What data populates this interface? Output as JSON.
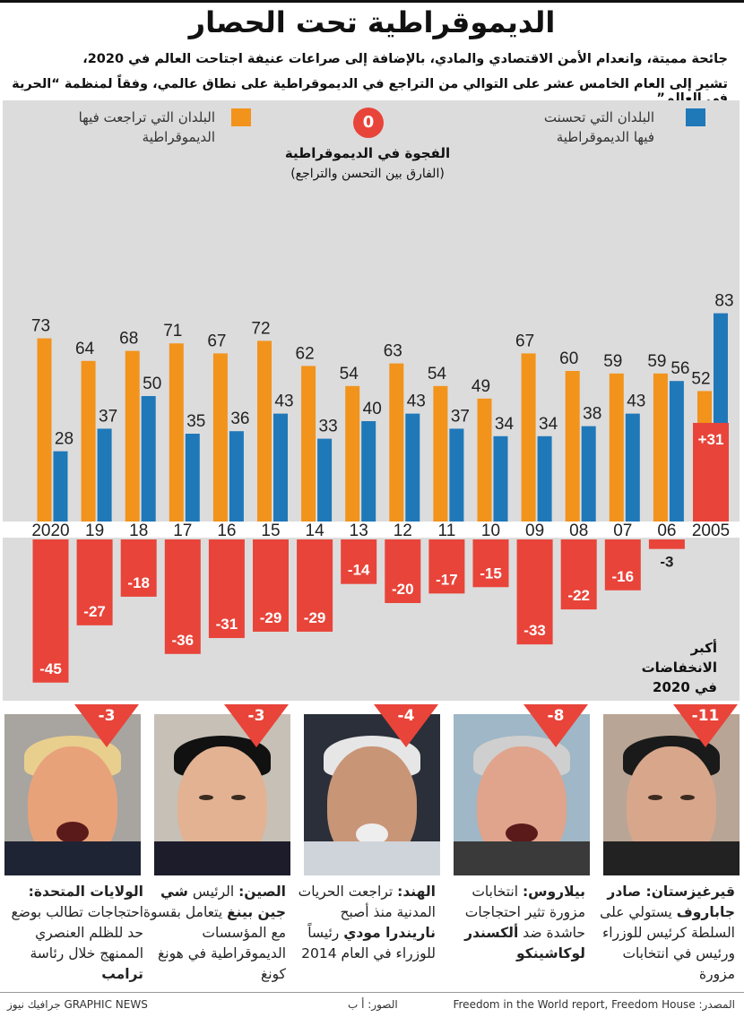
{
  "title": "الديموقراطية تحت الحصار",
  "subtitle_line1": "جائحة مميتة، وانعدام الأمن الاقتصادي والمادي، بالإضافة إلى صراعات عنيفة اجتاحت العالم في 2020،",
  "subtitle_line2": "تشير إلى العام الخامس عشر على التوالي من التراجع في الديموقراطية على نطاق عالمي، وفقاً لمنظمة “الحرية في العالم”",
  "legend": {
    "improved": "البلدان التي تحسنت فيها الديموقراطية",
    "declined": "البلدان التي تراجعت فيها الديموقراطية"
  },
  "gap": {
    "badge": "0",
    "title": "الفجوة في الديموقراطية",
    "subtitle": "(الفارق بين التحسن والتراجع)"
  },
  "colors": {
    "improved": "#1f78b8",
    "declined": "#f2931c",
    "gap": "#e8443a",
    "panel": "#dcdcdc"
  },
  "chart_data": {
    "type": "bar",
    "categories": [
      "2005",
      "06",
      "07",
      "08",
      "09",
      "10",
      "11",
      "12",
      "13",
      "14",
      "15",
      "16",
      "17",
      "18",
      "19",
      "2020"
    ],
    "series": [
      {
        "name": "البلدان التي تحسنت فيها الديموقراطية",
        "values": [
          83,
          56,
          43,
          38,
          34,
          34,
          37,
          43,
          40,
          33,
          43,
          36,
          35,
          50,
          37,
          28
        ]
      },
      {
        "name": "البلدان التي تراجعت فيها الديموقراطية",
        "values": [
          52,
          59,
          59,
          60,
          67,
          49,
          54,
          63,
          54,
          62,
          72,
          67,
          71,
          68,
          64,
          73
        ]
      },
      {
        "name": "الفجوة في الديموقراطية",
        "values": [
          31,
          -3,
          -16,
          -22,
          -33,
          -15,
          -17,
          -20,
          -14,
          -29,
          -29,
          -31,
          -36,
          -18,
          -27,
          -45
        ]
      }
    ],
    "gap_labels": [
      "31+",
      "3-",
      "16-",
      "22-",
      "33-",
      "15-",
      "17-",
      "20-",
      "14-",
      "29-",
      "29-",
      "31-",
      "36-",
      "18-",
      "27-",
      "45-"
    ]
  },
  "largest_declines": "أكبر الانخفاضات في 2020",
  "cards": [
    {
      "badge": "11-",
      "lead": "قيرغيزستان: صادر جاباروف",
      "text": "يستولي على السلطة كرئيس للوزراء ورئيس في انتخابات مزورة"
    },
    {
      "badge": "8-",
      "lead": "بيلاروس:",
      "text": "انتخابات مزورة تثير احتجاجات حاشدة ضد",
      "tail": "ألكسندر لوكاشينكو"
    },
    {
      "badge": "4-",
      "lead": "الهند:",
      "text": "تراجعت الحريات المدنية منذ أصبح",
      "tail": "ناريندرا مودي",
      "text2": "رئيساً للوزراء في العام 2014"
    },
    {
      "badge": "3-",
      "lead": "الصين:",
      "text": "الرئيس",
      "tail": "شي جين بينغ",
      "text2": "يتعامل بقسوة مع المؤسسات الديموقراطية في هونغ كونغ"
    },
    {
      "badge": "3-",
      "lead": "الولايات المتحدة:",
      "text": "احتجاجات تطالب بوضع حد للظلم العنصري الممنهج خلال رئاسة",
      "tail": "ترامب"
    }
  ],
  "footer": {
    "source": "المصدر: Freedom in the World report, Freedom House",
    "photos": "الصور: أ ب",
    "credit": "GRAPHIC NEWS جرافيك نيوز"
  }
}
